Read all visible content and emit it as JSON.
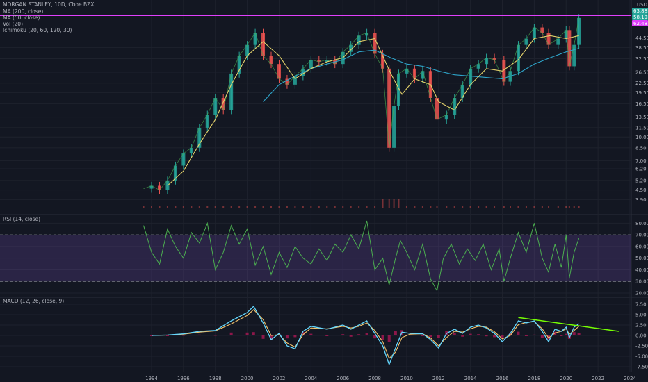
{
  "header": {
    "title": "MORGAN STANLEY, 10D, Cboe BZX",
    "indicators": [
      "MA (200, close)",
      "MA (50, close)",
      "Vol (20)",
      "Ichimoku (20, 60, 120, 30)"
    ]
  },
  "colors": {
    "background": "#131722",
    "candle_up": "#26a69a",
    "candle_down": "#ef5350",
    "ma200": "#2ea4c9",
    "ma50": "#e5d36b",
    "resistance": "#e040fb",
    "rsi_line": "#4caf50",
    "rsi_band": "#7e57c2",
    "macd_line": "#64d8ff",
    "signal_line": "#f5c36b",
    "hist": "#c2185b",
    "trendline": "#76ff03"
  },
  "price_axis": {
    "unit": "USD",
    "ticks": [
      "44.50",
      "38.50",
      "32.50",
      "26.50",
      "22.50",
      "19.50",
      "16.50",
      "13.50",
      "11.50",
      "10.00",
      "8.50",
      "7.00",
      "6.20",
      "5.20",
      "4.50",
      "3.90"
    ],
    "badges": [
      {
        "text": "63.88",
        "color": "#26a69a"
      },
      {
        "text": "58.19",
        "color": "#26a69a"
      },
      {
        "text": "62.48",
        "color": "#e040fb"
      }
    ]
  },
  "rsi_panel": {
    "title": "RSI (14, close)",
    "ticks": [
      "80.00",
      "70.00",
      "60.00",
      "50.00",
      "40.00",
      "30.00",
      "20.00"
    ]
  },
  "macd_panel": {
    "title": "MACD (12, 26, close, 9)",
    "ticks": [
      "7.50",
      "5.00",
      "2.50",
      "0.00",
      "-2.50",
      "-5.00",
      "-7.50"
    ]
  },
  "time_axis": {
    "ticks": [
      "1994",
      "1996",
      "1998",
      "2000",
      "2002",
      "2004",
      "2006",
      "2008",
      "2010",
      "2012",
      "2014",
      "2016",
      "2018",
      "2020",
      "2022",
      "2024"
    ]
  },
  "chart_data": {
    "type": "line",
    "symbol": "MORGAN STANLEY",
    "interval": "10D",
    "price_series": {
      "name": "close",
      "x": [
        1993.5,
        1994.0,
        1994.5,
        1995.0,
        1995.5,
        1996.0,
        1996.5,
        1997.0,
        1997.5,
        1998.0,
        1998.5,
        1999.0,
        1999.5,
        2000.0,
        2000.5,
        2001.0,
        2001.5,
        2002.0,
        2002.5,
        2003.0,
        2003.5,
        2004.0,
        2004.5,
        2005.0,
        2005.5,
        2006.0,
        2006.5,
        2007.0,
        2007.5,
        2008.0,
        2008.5,
        2008.9,
        2009.2,
        2009.5,
        2010.0,
        2010.5,
        2011.0,
        2011.5,
        2011.9,
        2012.5,
        2013.0,
        2013.5,
        2014.0,
        2014.5,
        2015.0,
        2015.5,
        2016.1,
        2016.5,
        2017.0,
        2017.5,
        2018.0,
        2018.5,
        2018.9,
        2019.5,
        2020.0,
        2020.2,
        2020.5,
        2020.8
      ],
      "values": [
        4.6,
        4.8,
        4.5,
        5.2,
        6.5,
        7.8,
        8.5,
        11.5,
        14.0,
        18.0,
        15.0,
        26.0,
        34.0,
        40.0,
        48.0,
        34.0,
        30.0,
        24.0,
        22.0,
        25.0,
        28.0,
        32.0,
        31.0,
        32.0,
        30.0,
        36.0,
        40.0,
        46.0,
        48.0,
        35.0,
        28.0,
        8.5,
        16.0,
        26.0,
        28.0,
        24.0,
        27.0,
        18.0,
        13.0,
        14.0,
        18.0,
        22.0,
        28.0,
        30.0,
        33.0,
        32.0,
        23.0,
        27.0,
        40.0,
        44.0,
        52.0,
        48.0,
        40.0,
        44.0,
        50.0,
        29.0,
        40.0,
        60.0
      ]
    },
    "ma200": {
      "name": "MA (200, close)",
      "x": [
        2001.0,
        2002.0,
        2003.0,
        2004.0,
        2005.0,
        2006.0,
        2007.0,
        2008.0,
        2009.0,
        2010.0,
        2011.0,
        2012.0,
        2013.0,
        2014.0,
        2015.0,
        2016.0,
        2017.0,
        2018.0,
        2019.0,
        2020.0,
        2020.8
      ],
      "values": [
        17.0,
        22.0,
        25.0,
        28.0,
        30.0,
        32.0,
        36.0,
        37.0,
        33.0,
        30.0,
        29.0,
        27.0,
        25.5,
        25.0,
        24.5,
        24.0,
        26.0,
        30.0,
        33.0,
        36.0,
        38.0
      ]
    },
    "ma50": {
      "name": "MA (50, close)",
      "x": [
        1995.0,
        1996.0,
        1997.0,
        1998.0,
        1999.0,
        2000.0,
        2001.0,
        2002.0,
        2003.0,
        2004.0,
        2005.0,
        2006.0,
        2007.0,
        2008.0,
        2009.0,
        2009.7,
        2010.5,
        2011.5,
        2012.0,
        2013.0,
        2014.0,
        2015.0,
        2016.0,
        2017.0,
        2018.0,
        2019.0,
        2020.0,
        2020.8
      ],
      "values": [
        4.8,
        6.0,
        9.0,
        13.0,
        22.0,
        34.0,
        42.0,
        34.0,
        24.0,
        28.0,
        31.0,
        33.0,
        42.0,
        44.0,
        26.0,
        19.0,
        24.0,
        22.0,
        17.0,
        15.0,
        22.0,
        28.0,
        27.0,
        32.0,
        44.0,
        46.0,
        44.0,
        46.0
      ]
    },
    "resistance_level": 62.48,
    "rsi": {
      "name": "RSI (14, close)",
      "x": [
        1993.5,
        1994.0,
        1994.5,
        1995.0,
        1995.5,
        1996.0,
        1996.5,
        1997.0,
        1997.5,
        1998.0,
        1998.5,
        1999.0,
        1999.5,
        2000.0,
        2000.5,
        2001.0,
        2001.5,
        2002.0,
        2002.5,
        2003.0,
        2003.5,
        2004.0,
        2004.5,
        2005.0,
        2005.5,
        2006.0,
        2006.5,
        2007.0,
        2007.5,
        2008.0,
        2008.5,
        2008.9,
        2009.3,
        2009.6,
        2010.0,
        2010.5,
        2011.0,
        2011.5,
        2011.9,
        2012.3,
        2012.8,
        2013.3,
        2013.8,
        2014.3,
        2014.8,
        2015.3,
        2015.8,
        2016.1,
        2016.5,
        2017.0,
        2017.5,
        2018.0,
        2018.5,
        2018.9,
        2019.3,
        2019.7,
        2020.0,
        2020.2,
        2020.5,
        2020.8
      ],
      "values": [
        78,
        55,
        45,
        75,
        60,
        50,
        72,
        63,
        80,
        40,
        55,
        78,
        62,
        75,
        44,
        60,
        36,
        55,
        42,
        60,
        50,
        45,
        58,
        48,
        62,
        55,
        70,
        58,
        82,
        40,
        50,
        27,
        50,
        65,
        55,
        40,
        62,
        32,
        22,
        50,
        62,
        45,
        58,
        48,
        62,
        40,
        58,
        30,
        50,
        72,
        55,
        80,
        50,
        38,
        62,
        42,
        70,
        33,
        55,
        67
      ]
    },
    "rsi_levels": [
      70,
      30
    ],
    "macd": {
      "name": "MACD (12, 26, close, 9)",
      "x": [
        1994.0,
        1995.0,
        1996.0,
        1997.0,
        1998.0,
        1999.0,
        2000.0,
        2000.4,
        2001.0,
        2001.5,
        2002.0,
        2002.5,
        2003.0,
        2003.5,
        2004.0,
        2005.0,
        2006.0,
        2006.5,
        2007.0,
        2007.5,
        2008.0,
        2008.5,
        2008.9,
        2009.3,
        2009.7,
        2010.2,
        2011.0,
        2011.5,
        2012.0,
        2012.5,
        2013.0,
        2013.5,
        2014.0,
        2014.5,
        2015.0,
        2015.5,
        2016.0,
        2016.5,
        2017.0,
        2017.5,
        2018.0,
        2018.5,
        2018.9,
        2019.3,
        2019.7,
        2020.0,
        2020.2,
        2020.5,
        2020.8
      ],
      "macd_line": [
        0,
        0.1,
        0.4,
        1.0,
        1.2,
        3.5,
        5.5,
        7.0,
        3.0,
        -1.0,
        0.5,
        -2.5,
        -3.2,
        1.0,
        2.2,
        1.5,
        2.5,
        1.5,
        2.5,
        3.5,
        0.5,
        -2.5,
        -7.0,
        -3.0,
        0.8,
        0.5,
        0.4,
        -1.0,
        -3.0,
        0.5,
        1.5,
        0.5,
        2.0,
        2.5,
        1.8,
        0.5,
        -1.5,
        0.5,
        3.5,
        3.0,
        3.5,
        1.0,
        -1.5,
        1.5,
        1.0,
        2.0,
        -0.5,
        2.0,
        2.8
      ],
      "signal_line": [
        0,
        0.1,
        0.3,
        0.8,
        1.1,
        2.8,
        4.8,
        6.2,
        3.8,
        0.0,
        0.2,
        -1.8,
        -2.8,
        0.2,
        1.8,
        1.6,
        2.2,
        1.8,
        2.2,
        3.0,
        1.2,
        -1.5,
        -5.5,
        -4.0,
        -0.5,
        0.3,
        0.4,
        -0.6,
        -2.5,
        -0.5,
        1.0,
        0.8,
        1.6,
        2.2,
        2.0,
        0.9,
        -0.8,
        0.0,
        2.6,
        3.1,
        3.3,
        1.6,
        -0.6,
        0.6,
        1.0,
        1.6,
        0.3,
        1.2,
        2.2
      ]
    },
    "macd_trendline": {
      "from": [
        2017.0,
        4.3
      ],
      "to": [
        2023.3,
        1.0
      ]
    }
  }
}
